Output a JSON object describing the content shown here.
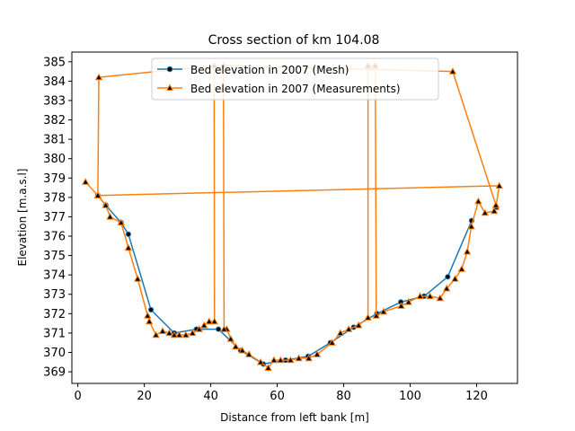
{
  "chart_data": {
    "type": "line",
    "title": "Cross section of km 104.08",
    "xlabel": "Distance from left bank [m]",
    "ylabel": "Elevation [m.a.s.l]",
    "xlim": [
      -1.8,
      132.3
    ],
    "ylim": [
      368.4,
      385.5
    ],
    "xticks": [
      0,
      20,
      40,
      60,
      80,
      100,
      120
    ],
    "yticks": [
      369,
      370,
      371,
      372,
      373,
      374,
      375,
      376,
      377,
      378,
      379,
      380,
      381,
      382,
      383,
      384,
      385
    ],
    "grid": false,
    "legend_position": "top-center",
    "series": [
      {
        "name": "Bed elevation in 2007 (Mesh)",
        "color": "#1f77b4",
        "marker": "circle",
        "marker_color": "#000000",
        "points": [
          [
            6.0,
            378.1
          ],
          [
            8.4,
            377.6
          ],
          [
            13.0,
            376.7
          ],
          [
            15.2,
            376.1
          ],
          [
            22.0,
            372.2
          ],
          [
            29.0,
            371.0
          ],
          [
            35.7,
            371.2
          ],
          [
            42.3,
            371.2
          ],
          [
            49.0,
            370.1
          ],
          [
            55.8,
            369.4
          ],
          [
            62.5,
            369.6
          ],
          [
            69.3,
            369.8
          ],
          [
            76.0,
            370.5
          ],
          [
            83.0,
            371.3
          ],
          [
            90.0,
            372.0
          ],
          [
            97.2,
            372.6
          ],
          [
            104.2,
            372.9
          ],
          [
            111.3,
            373.9
          ],
          [
            118.5,
            376.8
          ]
        ]
      },
      {
        "name": "Bed elevation in 2007 (Measurements)",
        "color": "#ff7f0e",
        "marker": "triangle",
        "marker_color": "#000000",
        "points": [
          [
            2.3,
            378.8
          ],
          [
            6.0,
            378.1
          ],
          [
            6.3,
            384.2
          ],
          [
            41.0,
            384.8
          ],
          [
            41.1,
            371.6
          ],
          [
            39.5,
            371.6
          ],
          [
            38.0,
            371.4
          ],
          [
            36.5,
            371.2
          ],
          [
            34.5,
            371.0
          ],
          [
            32.5,
            370.9
          ],
          [
            30.5,
            370.9
          ],
          [
            29.0,
            370.9
          ],
          [
            27.5,
            371.0
          ],
          [
            25.5,
            371.1
          ],
          [
            23.5,
            370.9
          ],
          [
            21.5,
            371.6
          ],
          [
            21.0,
            371.9
          ],
          [
            18.0,
            373.8
          ],
          [
            15.2,
            375.4
          ],
          [
            13.0,
            376.7
          ],
          [
            9.7,
            377.0
          ],
          [
            8.4,
            377.6
          ],
          [
            6.0,
            378.1
          ],
          [
            126.8,
            378.6
          ],
          [
            125.8,
            377.5
          ],
          [
            125.3,
            377.3
          ],
          [
            122.5,
            377.2
          ],
          [
            120.5,
            377.8
          ],
          [
            118.4,
            376.5
          ],
          [
            117.2,
            375.2
          ],
          [
            115.5,
            374.3
          ],
          [
            113.5,
            373.8
          ],
          [
            111.0,
            373.3
          ],
          [
            109.0,
            372.8
          ],
          [
            106.0,
            372.9
          ],
          [
            103.0,
            372.9
          ],
          [
            99.5,
            372.6
          ],
          [
            97.3,
            372.4
          ],
          [
            92.0,
            372.1
          ],
          [
            89.8,
            371.9
          ],
          [
            89.5,
            384.8
          ],
          [
            87.3,
            384.8
          ],
          [
            87.3,
            371.8
          ],
          [
            84.5,
            371.4
          ],
          [
            81.5,
            371.2
          ],
          [
            79.0,
            371.0
          ],
          [
            76.5,
            370.5
          ],
          [
            72.0,
            369.9
          ],
          [
            69.5,
            369.7
          ],
          [
            66.5,
            369.7
          ],
          [
            64.0,
            369.6
          ],
          [
            61.0,
            369.6
          ],
          [
            59.0,
            369.6
          ],
          [
            57.3,
            369.2
          ],
          [
            55.0,
            369.5
          ],
          [
            51.5,
            369.9
          ],
          [
            49.5,
            370.1
          ],
          [
            47.5,
            370.3
          ],
          [
            46.0,
            370.7
          ],
          [
            44.8,
            371.2
          ],
          [
            44.0,
            371.2
          ],
          [
            43.8,
            384.8
          ],
          [
            112.8,
            384.5
          ],
          [
            125.8,
            377.6
          ]
        ]
      }
    ]
  }
}
